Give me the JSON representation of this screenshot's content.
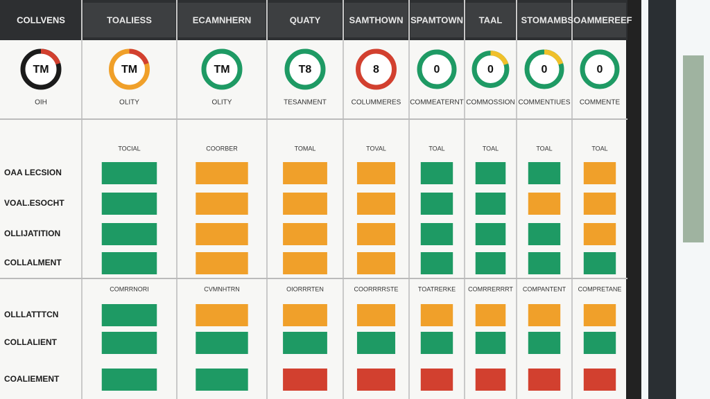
{
  "header": {
    "columns": [
      "COLLVENS",
      "TOALIESS",
      "ECAMNHERN",
      "QUATY",
      "SAMTHOWN",
      "SPAMTOWN",
      "TAAL",
      "STOMAMB",
      "SOAMMEREEF"
    ]
  },
  "gauges": [
    {
      "label": "TM",
      "caption": "OIH",
      "ring": "#1b1b1b",
      "accent": "#d2402f"
    },
    {
      "label": "TM",
      "caption": "OLITY",
      "ring": "#f0a02a",
      "accent": "#d2402f"
    },
    {
      "label": "TM",
      "caption": "OLITY",
      "ring": "#1e9a64",
      "accent": "#1e9a64"
    },
    {
      "label": "T8",
      "caption": "TESANMENT",
      "ring": "#1e9a64",
      "accent": "#1e9a64"
    },
    {
      "label": "8",
      "caption": "COLUMMERES",
      "ring": "#d2402f",
      "accent": "#d2402f"
    },
    {
      "label": "0",
      "caption": "COMMEATERNT",
      "ring": "#1e9a64",
      "accent": "#1e9a64"
    },
    {
      "label": "0",
      "caption": "COMMOSSION",
      "ring": "#1e9a64",
      "accent": "#f0c02a"
    },
    {
      "label": "0",
      "caption": "COMMENTIUES",
      "ring": "#1e9a64",
      "accent": "#f0c02a"
    },
    {
      "label": "0",
      "caption": "COMMENTE",
      "ring": "#1e9a64",
      "accent": "#1e9a64"
    }
  ],
  "sections": [
    {
      "headings": [
        "TOCIAL",
        "COORBER",
        "TOMAL",
        "TOVAL",
        "TOAL",
        "TOAL",
        "TOAL",
        "TOAL"
      ],
      "rows": [
        {
          "label": "OAA LECSION",
          "cells": [
            "#1e9a64",
            "#f0a02a",
            "#f0a02a",
            "#f0a02a",
            "#1e9a64",
            "#1e9a64",
            "#1e9a64",
            "#f0a02a"
          ]
        },
        {
          "label": "VOAL.ESOCHT",
          "cells": [
            "#1e9a64",
            "#f0a02a",
            "#f0a02a",
            "#f0a02a",
            "#1e9a64",
            "#1e9a64",
            "#f0a02a",
            "#f0a02a"
          ]
        },
        {
          "label": "OLLIJATITION",
          "cells": [
            "#1e9a64",
            "#f0a02a",
            "#f0a02a",
            "#f0a02a",
            "#1e9a64",
            "#1e9a64",
            "#1e9a64",
            "#f0a02a"
          ]
        },
        {
          "label": "COLLALMENT",
          "cells": [
            "#1e9a64",
            "#f0a02a",
            "#f0a02a",
            "#f0a02a",
            "#1e9a64",
            "#1e9a64",
            "#1e9a64",
            "#1e9a64"
          ]
        }
      ]
    },
    {
      "headings": [
        "COMRRNORI",
        "CVMNHTRN",
        "OIORRRTEN",
        "COORRRRSTE",
        "TOATRERKE",
        "COMRRERRRT",
        "COMPANTENT",
        "COMPRETANE"
      ],
      "rows": [
        {
          "label": "OLLLATTTCN",
          "cells": [
            "#1e9a64",
            "#f0a02a",
            "#f0a02a",
            "#f0a02a",
            "#f0a02a",
            "#f0a02a",
            "#f0a02a",
            "#f0a02a"
          ]
        },
        {
          "label": "COLLALIENT",
          "cells": [
            "#1e9a64",
            "#1e9a64",
            "#1e9a64",
            "#1e9a64",
            "#1e9a64",
            "#1e9a64",
            "#1e9a64",
            "#1e9a64"
          ]
        },
        {
          "label": "COALIEMENT",
          "cells": [
            "#1e9a64",
            "#1e9a64",
            "#d2402f",
            "#d2402f",
            "#d2402f",
            "#d2402f",
            "#d2402f",
            "#d2402f"
          ]
        }
      ]
    }
  ]
}
